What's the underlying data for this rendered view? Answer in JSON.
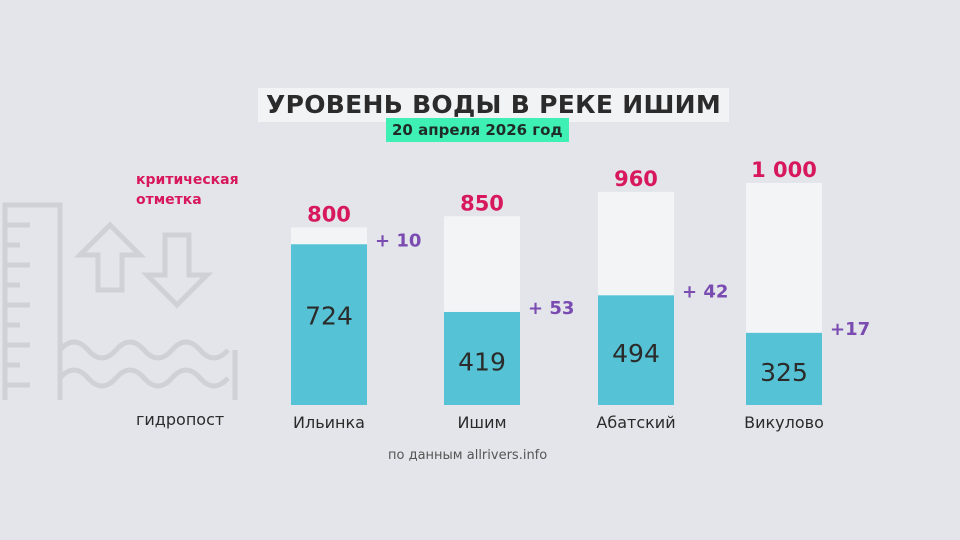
{
  "title": "УРОВЕНЬ ВОДЫ В РЕКЕ ИШИМ",
  "subtitle": "20 апреля 2026 год",
  "legend": {
    "critical_label": "критическая отметка",
    "station_label": "гидропост",
    "icon": "water-gauge-icon"
  },
  "source": "по данным allrivers.info",
  "colors": {
    "current": "#55c2d5",
    "critical": "#f3f4f6",
    "critical_text": "#d8185d",
    "change_text": "#7a4bb0",
    "highlight": "#3ff0b4"
  },
  "chart_data": {
    "type": "bar",
    "categories": [
      "Ильинка",
      "Ишим",
      "Абатский",
      "Викулово"
    ],
    "series": [
      {
        "name": "критическая отметка",
        "values": [
          800,
          850,
          960,
          1000
        ],
        "labels": [
          "800",
          "850",
          "960",
          "1 000"
        ]
      },
      {
        "values": [
          724,
          419,
          494,
          325
        ],
        "labels": [
          "724",
          "419",
          "494",
          "325"
        ]
      }
    ],
    "changes": [
      "+ 10",
      "+ 53",
      "+ 42",
      "+17"
    ],
    "ylim": [
      0,
      1000
    ]
  }
}
